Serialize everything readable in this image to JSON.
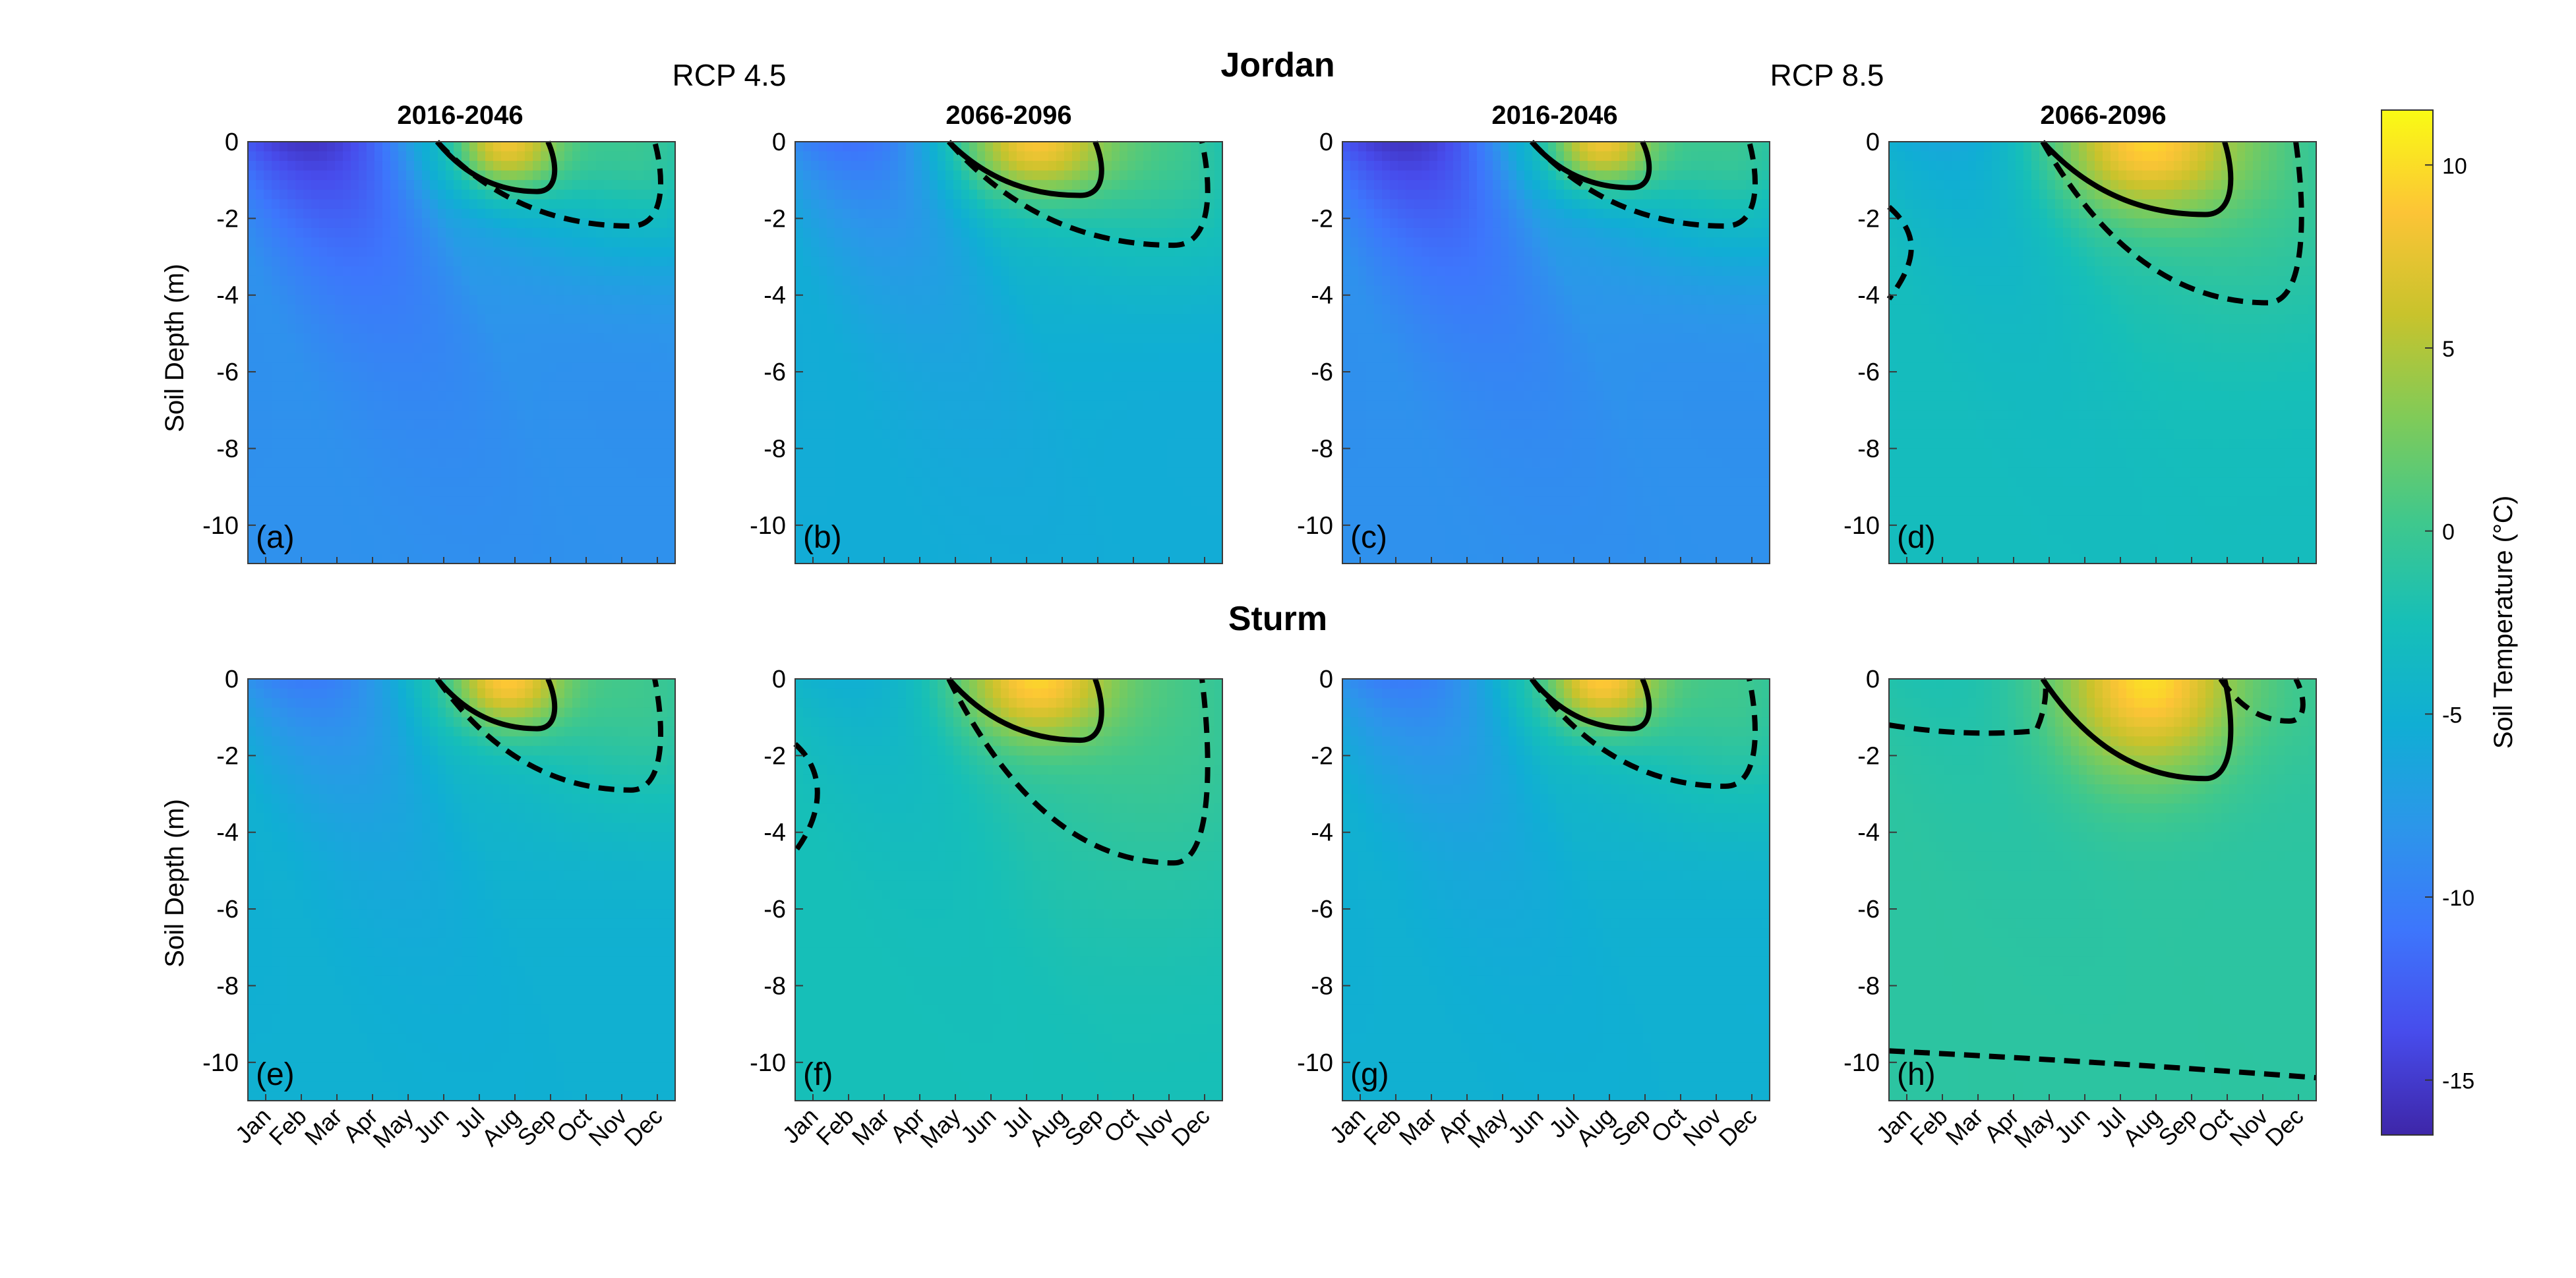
{
  "figure": {
    "sites": [
      "Jordan",
      "Sturm"
    ],
    "scenarios": [
      "RCP 4.5",
      "RCP 8.5"
    ],
    "periods": [
      "2016-2046",
      "2066-2096",
      "2016-2046",
      "2066-2096"
    ]
  },
  "axes": {
    "ylabel": "Soil Depth (m)",
    "yticks": [
      0,
      -2,
      -4,
      -6,
      -8,
      -10
    ],
    "ylim": [
      -11,
      0
    ],
    "months": [
      "Jan",
      "Feb",
      "Mar",
      "Apr",
      "May",
      "Jun",
      "Jul",
      "Aug",
      "Sep",
      "Oct",
      "Nov",
      "Dec"
    ]
  },
  "colorbar": {
    "label": "Soil Temperature (°C)",
    "ticks": [
      10,
      5,
      0,
      -5,
      -10,
      -15
    ],
    "range": [
      -16.5,
      11.5
    ],
    "colormap": "parula"
  },
  "chart_data": [
    {
      "type": "heatmap",
      "panel": "(a)",
      "site": "Jordan",
      "scenario": "RCP 4.5",
      "period": "2016-2046",
      "x": "month",
      "y": "Soil Depth (m)",
      "winter_surface_min_c": -15,
      "deep_annual_c": -8.5,
      "summer_surface_max_c": 8,
      "solid_contour": {
        "from_month": "Jun",
        "to_month": "Sep",
        "max_depth_m": -1.3
      },
      "dashed_contour": {
        "from_month": "Jun",
        "to_month": "Dec",
        "max_depth_m": -2.2
      }
    },
    {
      "type": "heatmap",
      "panel": "(b)",
      "site": "Jordan",
      "scenario": "RCP 4.5",
      "period": "2066-2096",
      "x": "month",
      "y": "Soil Depth (m)",
      "winter_surface_min_c": -11,
      "deep_annual_c": -5.5,
      "summer_surface_max_c": 8.5,
      "solid_contour": {
        "from_month": "May",
        "to_month": "Sep",
        "max_depth_m": -1.4
      },
      "dashed_contour": {
        "from_month": "May",
        "to_month": "Dec",
        "max_depth_m": -2.7
      }
    },
    {
      "type": "heatmap",
      "panel": "(c)",
      "site": "Jordan",
      "scenario": "RCP 8.5",
      "period": "2016-2046",
      "x": "month",
      "y": "Soil Depth (m)",
      "winter_surface_min_c": -15,
      "deep_annual_c": -8.5,
      "summer_surface_max_c": 8,
      "solid_contour": {
        "from_month": "Jun",
        "to_month": "Sep",
        "max_depth_m": -1.2
      },
      "dashed_contour": {
        "from_month": "Jun",
        "to_month": "Dec",
        "max_depth_m": -2.2
      }
    },
    {
      "type": "heatmap",
      "panel": "(d)",
      "site": "Jordan",
      "scenario": "RCP 8.5",
      "period": "2066-2096",
      "x": "month",
      "y": "Soil Depth (m)",
      "winter_surface_min_c": -6,
      "deep_annual_c": -3,
      "summer_surface_max_c": 9.5,
      "solid_contour": {
        "from_month": "May",
        "to_month": "Oct",
        "max_depth_m": -1.9
      },
      "dashed_contour": {
        "from_month": "May",
        "to_month": "Dec",
        "max_depth_m": -4.2
      },
      "dashed_contour_winter": {
        "from_month": "Jan",
        "to_month": "Feb",
        "max_depth_m": -4.1
      }
    },
    {
      "type": "heatmap",
      "panel": "(e)",
      "site": "Sturm",
      "scenario": "RCP 4.5",
      "period": "2016-2046",
      "x": "month",
      "y": "Soil Depth (m)",
      "winter_surface_min_c": -10,
      "deep_annual_c": -5,
      "summer_surface_max_c": 9,
      "solid_contour": {
        "from_month": "Jun",
        "to_month": "Sep",
        "max_depth_m": -1.3
      },
      "dashed_contour": {
        "from_month": "Jun",
        "to_month": "Dec",
        "max_depth_m": -2.9
      }
    },
    {
      "type": "heatmap",
      "panel": "(f)",
      "site": "Sturm",
      "scenario": "RCP 4.5",
      "period": "2066-2096",
      "x": "month",
      "y": "Soil Depth (m)",
      "winter_surface_min_c": -5,
      "deep_annual_c": -2.5,
      "summer_surface_max_c": 9.5,
      "solid_contour": {
        "from_month": "May",
        "to_month": "Sep",
        "max_depth_m": -1.6
      },
      "dashed_contour": {
        "from_month": "May",
        "to_month": "Dec",
        "max_depth_m": -4.8
      },
      "dashed_contour_winter": {
        "from_month": "Jan",
        "to_month": "Jan",
        "max_depth_m": -4.5
      }
    },
    {
      "type": "heatmap",
      "panel": "(g)",
      "site": "Sturm",
      "scenario": "RCP 8.5",
      "period": "2016-2046",
      "x": "month",
      "y": "Soil Depth (m)",
      "winter_surface_min_c": -10,
      "deep_annual_c": -5,
      "summer_surface_max_c": 9,
      "solid_contour": {
        "from_month": "Jun",
        "to_month": "Sep",
        "max_depth_m": -1.3
      },
      "dashed_contour": {
        "from_month": "Jun",
        "to_month": "Dec",
        "max_depth_m": -2.8
      }
    },
    {
      "type": "heatmap",
      "panel": "(h)",
      "site": "Sturm",
      "scenario": "RCP 8.5",
      "period": "2066-2096",
      "x": "month",
      "y": "Soil Depth (m)",
      "winter_surface_min_c": -2,
      "deep_annual_c": -1,
      "summer_surface_max_c": 10,
      "solid_contour": {
        "from_month": "May",
        "to_month": "Oct",
        "max_depth_m": -2.6
      },
      "dashed_contour": {
        "from_month": "Oct",
        "to_month": "Dec",
        "max_depth_m": -1.1
      },
      "dashed_contour_winter": {
        "from_month": "Jan",
        "to_month": "Apr",
        "max_depth_m": -1.7
      },
      "dashed_contour_deep": {
        "from_month": "Jan",
        "to_month": "Dec",
        "depth_start_m": -9.7,
        "depth_end_m": -10.4
      }
    }
  ]
}
